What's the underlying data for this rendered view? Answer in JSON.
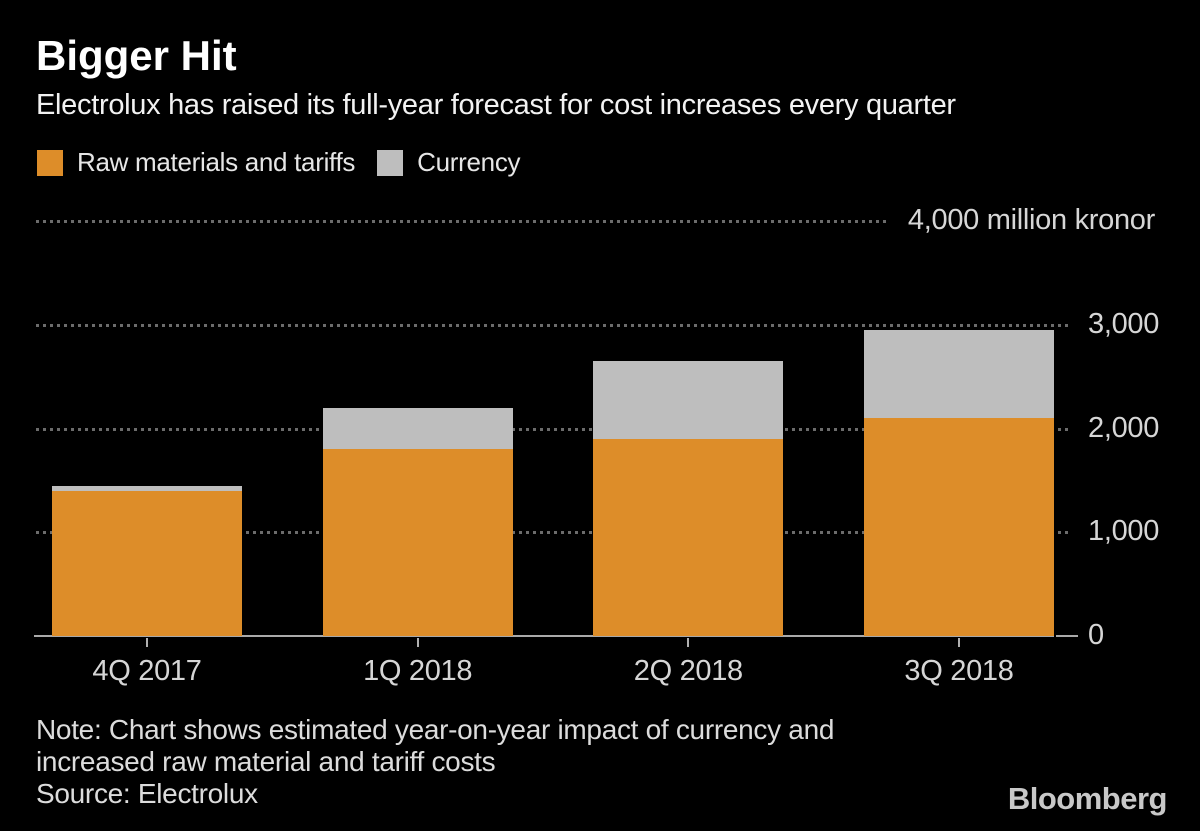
{
  "header": {
    "title": "Bigger Hit",
    "subtitle": "Electrolux has raised its full-year forecast for cost increases every quarter"
  },
  "legend": {
    "items": [
      {
        "label": "Raw materials and tariffs",
        "color": "#DD8D29"
      },
      {
        "label": "Currency",
        "color": "#BEBEBE"
      }
    ]
  },
  "chart_data": {
    "type": "bar",
    "stacked": true,
    "title": "Bigger Hit",
    "categories": [
      "4Q 2017",
      "1Q 2018",
      "2Q 2018",
      "3Q 2018"
    ],
    "series": [
      {
        "name": "Raw materials and tariffs",
        "color": "#DD8D29",
        "values": [
          1400,
          1800,
          1900,
          2100
        ]
      },
      {
        "name": "Currency",
        "color": "#BEBEBE",
        "values": [
          50,
          400,
          750,
          850
        ]
      }
    ],
    "totals": [
      1450,
      2200,
      2650,
      2950
    ],
    "unit": "million kronor",
    "ylim": [
      0,
      4000
    ],
    "yticks": [
      {
        "value": 0,
        "label": "0"
      },
      {
        "value": 1000,
        "label": "1,000"
      },
      {
        "value": 2000,
        "label": "2,000"
      },
      {
        "value": 3000,
        "label": "3,000"
      },
      {
        "value": 4000,
        "label": "4,000 million kronor"
      }
    ],
    "grid": "horizontal-dotted",
    "legend_position": "top-left",
    "background": "#000000"
  },
  "footer": {
    "note_lines": [
      "Note: Chart shows estimated year-on-year impact of currency and",
      "increased raw material and tariff costs"
    ],
    "source": "Source: Electrolux",
    "brand": "Bloomberg"
  },
  "colors": {
    "background": "#000000",
    "title": "#ffffff",
    "axis_labels": "#d6d6d6",
    "grid_dots": "#6c6c6c",
    "baseline": "#a9a9a9",
    "raw_materials": "#DD8D29",
    "currency": "#BEBEBE",
    "brand": "#c8c8c8"
  }
}
